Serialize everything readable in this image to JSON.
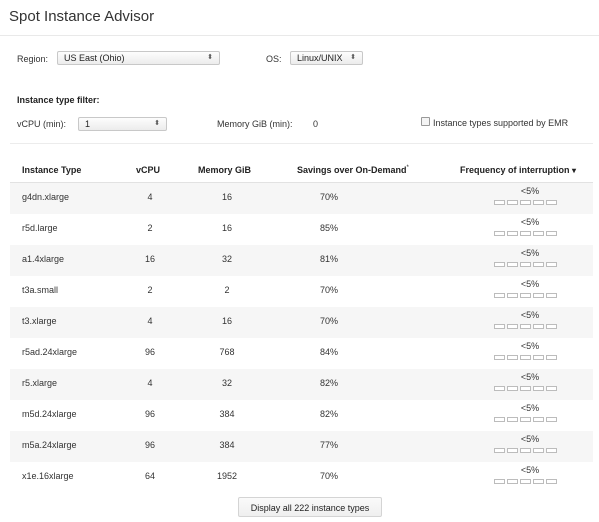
{
  "app": {
    "title": "Spot Instance Advisor"
  },
  "filters": {
    "region_label": "Region:",
    "region_value": "US East (Ohio)",
    "os_label": "OS:",
    "os_value": "Linux/UNIX",
    "instance_filter_title": "Instance type filter:",
    "vcpu_label": "vCPU (min):",
    "vcpu_value": "1",
    "memory_label": "Memory GiB (min):",
    "memory_value": "0",
    "emr_label": "Instance types supported by EMR"
  },
  "table": {
    "headers": {
      "instance_type": "Instance Type",
      "vcpu": "vCPU",
      "memory": "Memory GiB",
      "savings": "Savings over On-Demand",
      "savings_note": "*",
      "frequency": "Frequency of interruption",
      "frequency_sort": "▾"
    },
    "rows": [
      {
        "type": "g4dn.xlarge",
        "vcpu": "4",
        "memory": "16",
        "savings": "70%",
        "frequency": "<5%"
      },
      {
        "type": "r5d.large",
        "vcpu": "2",
        "memory": "16",
        "savings": "85%",
        "frequency": "<5%"
      },
      {
        "type": "a1.4xlarge",
        "vcpu": "16",
        "memory": "32",
        "savings": "81%",
        "frequency": "<5%"
      },
      {
        "type": "t3a.small",
        "vcpu": "2",
        "memory": "2",
        "savings": "70%",
        "frequency": "<5%"
      },
      {
        "type": "t3.xlarge",
        "vcpu": "4",
        "memory": "16",
        "savings": "70%",
        "frequency": "<5%"
      },
      {
        "type": "r5ad.24xlarge",
        "vcpu": "96",
        "memory": "768",
        "savings": "84%",
        "frequency": "<5%"
      },
      {
        "type": "r5.xlarge",
        "vcpu": "4",
        "memory": "32",
        "savings": "82%",
        "frequency": "<5%"
      },
      {
        "type": "m5d.24xlarge",
        "vcpu": "96",
        "memory": "384",
        "savings": "82%",
        "frequency": "<5%"
      },
      {
        "type": "m5a.24xlarge",
        "vcpu": "96",
        "memory": "384",
        "savings": "77%",
        "frequency": "<5%"
      },
      {
        "type": "x1e.16xlarge",
        "vcpu": "64",
        "memory": "1952",
        "savings": "70%",
        "frequency": "<5%"
      }
    ],
    "frequency_level": 0.2
  },
  "footer": {
    "display_all_label": "Display all 222 instance types"
  },
  "icons": {
    "select_arrows": "↕",
    "sort_down": "chevron-down-icon"
  }
}
